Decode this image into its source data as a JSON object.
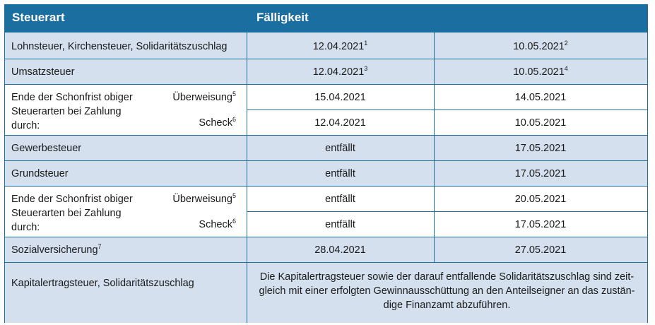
{
  "header": {
    "col1": "Steuerart",
    "col2": "Fälligkeit"
  },
  "rows": {
    "r1": {
      "label": "Lohnsteuer, Kirchensteuer, Solidaritätszuschlag",
      "d1": "12.04.2021",
      "d1_fn": "1",
      "d2": "10.05.2021",
      "d2_fn": "2"
    },
    "r2": {
      "label": "Umsatzsteuer",
      "d1": "12.04.2021",
      "d1_fn": "3",
      "d2": "10.05.2021",
      "d2_fn": "4"
    },
    "r3": {
      "label_l1": "Ende der Schonfrist obiger",
      "label_l2": "Steuerarten bei Zahlung",
      "label_l3": "durch:",
      "sub1": "Überweisung",
      "sub1_fn": "5",
      "sub2": "Scheck",
      "sub2_fn": "6",
      "a1": "15.04.2021",
      "a2": "14.05.2021",
      "b1": "12.04.2021",
      "b2": "10.05.2021"
    },
    "r4": {
      "label": "Gewerbesteuer",
      "d1": "entfällt",
      "d2": "17.05.2021"
    },
    "r5": {
      "label": "Grundsteuer",
      "d1": "entfällt",
      "d2": "17.05.2021"
    },
    "r6": {
      "label_l1": "Ende der Schonfrist obiger",
      "label_l2": "Steuerarten bei Zahlung",
      "label_l3": "durch:",
      "sub1": "Überweisung",
      "sub1_fn": "5",
      "sub2": "Scheck",
      "sub2_fn": "6",
      "a1": "entfällt",
      "a2": "20.05.2021",
      "b1": "entfällt",
      "b2": "17.05.2021"
    },
    "r7": {
      "label": "Sozialversicherung",
      "label_fn": "7",
      "d1": "28.04.2021",
      "d2": "27.05.2021"
    },
    "r8": {
      "label": "Kapitalertragsteuer, Solidaritätszuschlag",
      "note_l1": "Die Kapitalertragsteuer sowie der darauf entfallende Solidaritätszuschlag sind zeit-",
      "note_l2": "gleich mit einer erfolgten Gewinnausschüttung an den Anteilseigner an das zustän-",
      "note_l3": "dige Finanzamt abzuführen."
    }
  },
  "colors": {
    "header_bg": "#1a6fa0",
    "shade": "#d4e0ee",
    "border": "#1f6f9a"
  }
}
